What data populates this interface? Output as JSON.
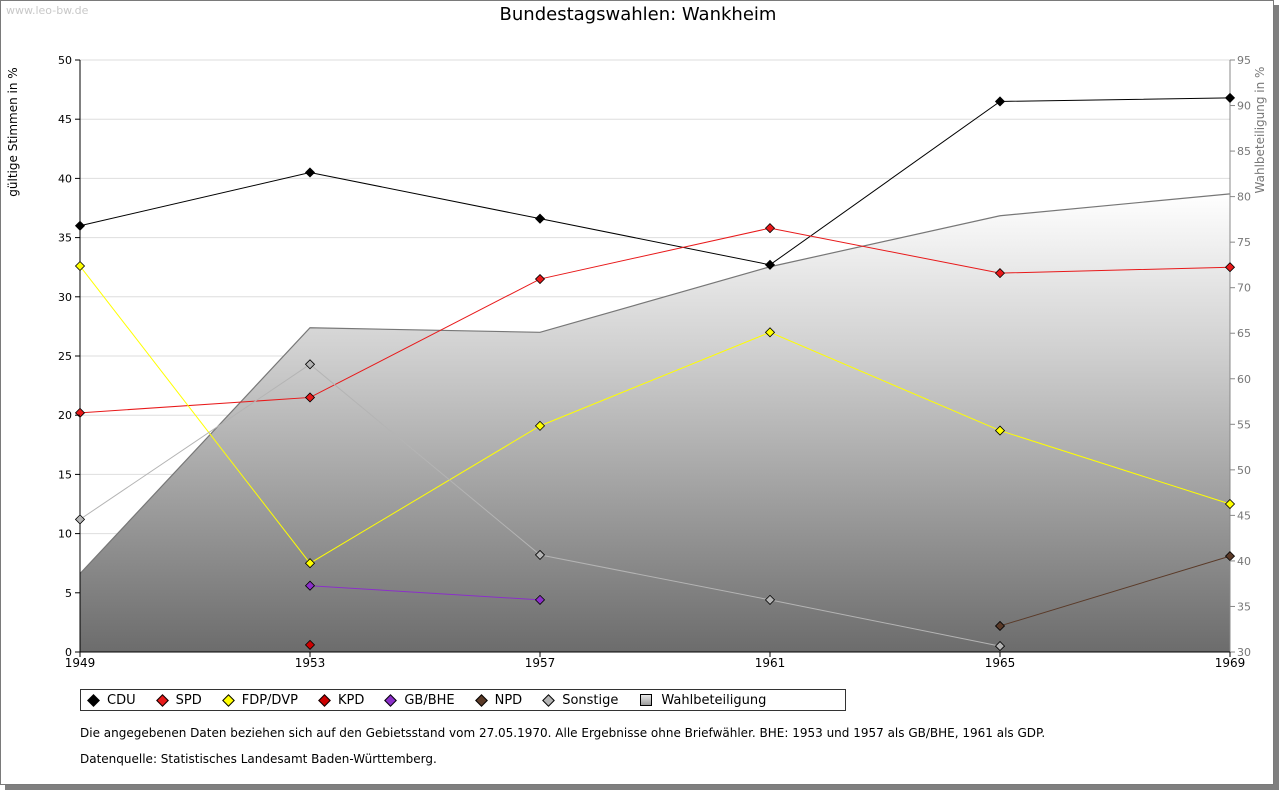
{
  "watermark": "www.leo-bw.de",
  "title": "Bundestagswahlen: Wankheim",
  "ylabel_left": "gültige Stimmen in %",
  "ylabel_right": "Wahlbeteiligung in %",
  "notes": [
    "Die angegebenen Daten beziehen sich auf den Gebietsstand vom 27.05.1970. Alle Ergebnisse ohne Briefwähler. BHE: 1953 und 1957 als GB/BHE, 1961 als GDP.",
    "Datenquelle: Statistisches Landesamt Baden-Württemberg."
  ],
  "chart_data": {
    "type": "line",
    "title": "Bundestagswahlen: Wankheim",
    "x": [
      "1949",
      "1953",
      "1957",
      "1961",
      "1965",
      "1969"
    ],
    "y_left": {
      "label": "gültige Stimmen in %",
      "lim": [
        0,
        50
      ],
      "ticks": [
        0,
        5,
        10,
        15,
        20,
        25,
        30,
        35,
        40,
        45,
        50
      ]
    },
    "y_right": {
      "label": "Wahlbeteiligung in %",
      "lim": [
        30,
        95
      ],
      "ticks": [
        30,
        35,
        40,
        45,
        50,
        55,
        60,
        65,
        70,
        75,
        80,
        85,
        90,
        95
      ]
    },
    "grid": true,
    "legend_position": "bottom-left",
    "area_series": {
      "name": "Wahlbeteiligung",
      "axis": "right",
      "values": [
        38.6,
        65.6,
        65.1,
        72.3,
        77.9,
        80.3
      ],
      "color": "#8a8a8a"
    },
    "series": [
      {
        "name": "CDU",
        "color": "#000000",
        "values": [
          36.0,
          40.5,
          36.6,
          32.7,
          46.5,
          46.8
        ]
      },
      {
        "name": "SPD",
        "color": "#e8191a",
        "values": [
          20.2,
          21.5,
          31.5,
          35.8,
          32.0,
          32.5
        ]
      },
      {
        "name": "FDP/DVP",
        "color": "#ffff00",
        "values": [
          32.6,
          7.5,
          19.1,
          27.0,
          18.7,
          12.5
        ]
      },
      {
        "name": "KPD",
        "color": "#cc0000",
        "values": [
          null,
          0.6,
          null,
          null,
          null,
          null
        ]
      },
      {
        "name": "GB/BHE",
        "color": "#8b2fc9",
        "values": [
          null,
          5.6,
          4.4,
          null,
          null,
          null
        ]
      },
      {
        "name": "NPD",
        "color": "#5a3a28",
        "values": [
          null,
          null,
          null,
          null,
          2.2,
          8.1
        ]
      },
      {
        "name": "Sonstige",
        "color": "#b4b4b4",
        "values": [
          11.2,
          24.3,
          8.2,
          4.4,
          0.5,
          null
        ]
      }
    ],
    "legend": [
      {
        "label": "CDU",
        "color": "#000000",
        "shape": "diamond"
      },
      {
        "label": "SPD",
        "color": "#e8191a",
        "shape": "diamond"
      },
      {
        "label": "FDP/DVP",
        "color": "#ffff00",
        "shape": "diamond"
      },
      {
        "label": "KPD",
        "color": "#cc0000",
        "shape": "diamond"
      },
      {
        "label": "GB/BHE",
        "color": "#8b2fc9",
        "shape": "diamond"
      },
      {
        "label": "NPD",
        "color": "#5a3a28",
        "shape": "diamond"
      },
      {
        "label": "Sonstige",
        "color": "#b4b4b4",
        "shape": "diamond"
      },
      {
        "label": "Wahlbeteiligung",
        "color": "#aaaaaa",
        "shape": "square"
      }
    ]
  }
}
